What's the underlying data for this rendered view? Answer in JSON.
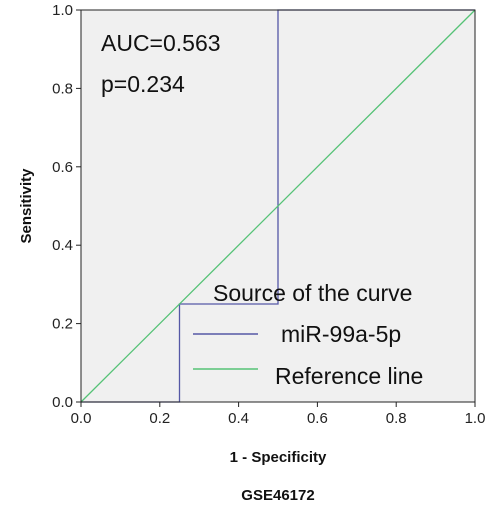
{
  "chart_data": {
    "type": "line",
    "xlabel": "1 - Specificity",
    "ylabel": "Sensitivity",
    "caption": "GSE46172",
    "xlim": [
      0.0,
      1.0
    ],
    "ylim": [
      0.0,
      1.0
    ],
    "x_ticks": [
      "0.0",
      "0.2",
      "0.4",
      "0.6",
      "0.8",
      "1.0"
    ],
    "y_ticks": [
      "0.0",
      "0.2",
      "0.4",
      "0.6",
      "0.8",
      "1.0"
    ],
    "grid": false,
    "annotations": [
      "AUC=0.563",
      "p=0.234"
    ],
    "legend": {
      "title": "Source of the curve",
      "placement": "bottom-right",
      "entries": [
        {
          "label": "miR-99a-5p",
          "color": "#5558a6"
        },
        {
          "label": "Reference line",
          "color": "#55c276"
        }
      ]
    },
    "series": [
      {
        "name": "miR-99a-5p",
        "color": "#5558a6",
        "points": [
          [
            0.0,
            0.0
          ],
          [
            0.25,
            0.0
          ],
          [
            0.25,
            0.25
          ],
          [
            0.5,
            0.25
          ],
          [
            0.5,
            1.0
          ],
          [
            1.0,
            1.0
          ]
        ]
      },
      {
        "name": "Reference line",
        "color": "#55c276",
        "points": [
          [
            0.0,
            0.0
          ],
          [
            1.0,
            1.0
          ]
        ]
      }
    ],
    "colors": {
      "plot_background": "#f0f0f0",
      "frame": "#222222"
    }
  }
}
